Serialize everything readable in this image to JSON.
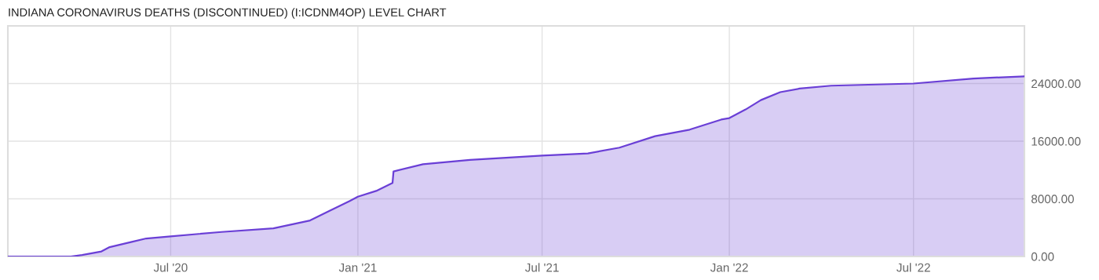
{
  "chart_data": {
    "type": "area",
    "title": "INDIANA CORONAVIRUS DEATHS (DISCONTINUED) (I:ICDNM4OP) LEVEL CHART",
    "x": [
      "2020-01-23",
      "2020-03-25",
      "2020-04-05",
      "2020-04-24",
      "2020-05-02",
      "2020-05-23",
      "2020-06-07",
      "2020-07-01",
      "2020-08-20",
      "2020-10-10",
      "2020-11-15",
      "2020-12-05",
      "2020-12-24",
      "2021-01-01",
      "2021-01-19",
      "2021-02-04",
      "2021-02-05",
      "2021-03-06",
      "2021-04-21",
      "2021-07-01",
      "2021-08-15",
      "2021-09-15",
      "2021-10-20",
      "2021-11-23",
      "2021-12-24",
      "2022-01-01",
      "2022-01-17",
      "2022-02-01",
      "2022-02-20",
      "2022-03-11",
      "2022-04-11",
      "2022-07-01",
      "2022-08-29",
      "2022-10-18"
    ],
    "series": [
      {
        "color": "#6a3fd6",
        "values": [
          0,
          0,
          200,
          700,
          1300,
          2000,
          2500,
          2800,
          3400,
          3900,
          5000,
          6400,
          7700,
          8300,
          9100,
          10200,
          11800,
          12800,
          13400,
          14000,
          14300,
          15100,
          16700,
          17600,
          19000,
          19200,
          20400,
          21700,
          22800,
          23300,
          23700,
          24000,
          24700,
          25000
        ]
      }
    ],
    "xlim": [
      "2020-01-23",
      "2022-10-18"
    ],
    "xticks": [
      {
        "value": "2020-07-01",
        "label": "Jul '20"
      },
      {
        "value": "2021-01-01",
        "label": "Jan '21"
      },
      {
        "value": "2021-07-01",
        "label": "Jul '21"
      },
      {
        "value": "2022-01-01",
        "label": "Jan '22"
      },
      {
        "value": "2022-07-01",
        "label": "Jul '22"
      }
    ],
    "ylim": [
      0,
      32000
    ],
    "yticks": [
      {
        "value": 0,
        "label": "0.00"
      },
      {
        "value": 8000,
        "label": "8000.00"
      },
      {
        "value": 16000,
        "label": "16000.00"
      },
      {
        "value": 24000,
        "label": "24000.00"
      }
    ],
    "grid": true
  }
}
